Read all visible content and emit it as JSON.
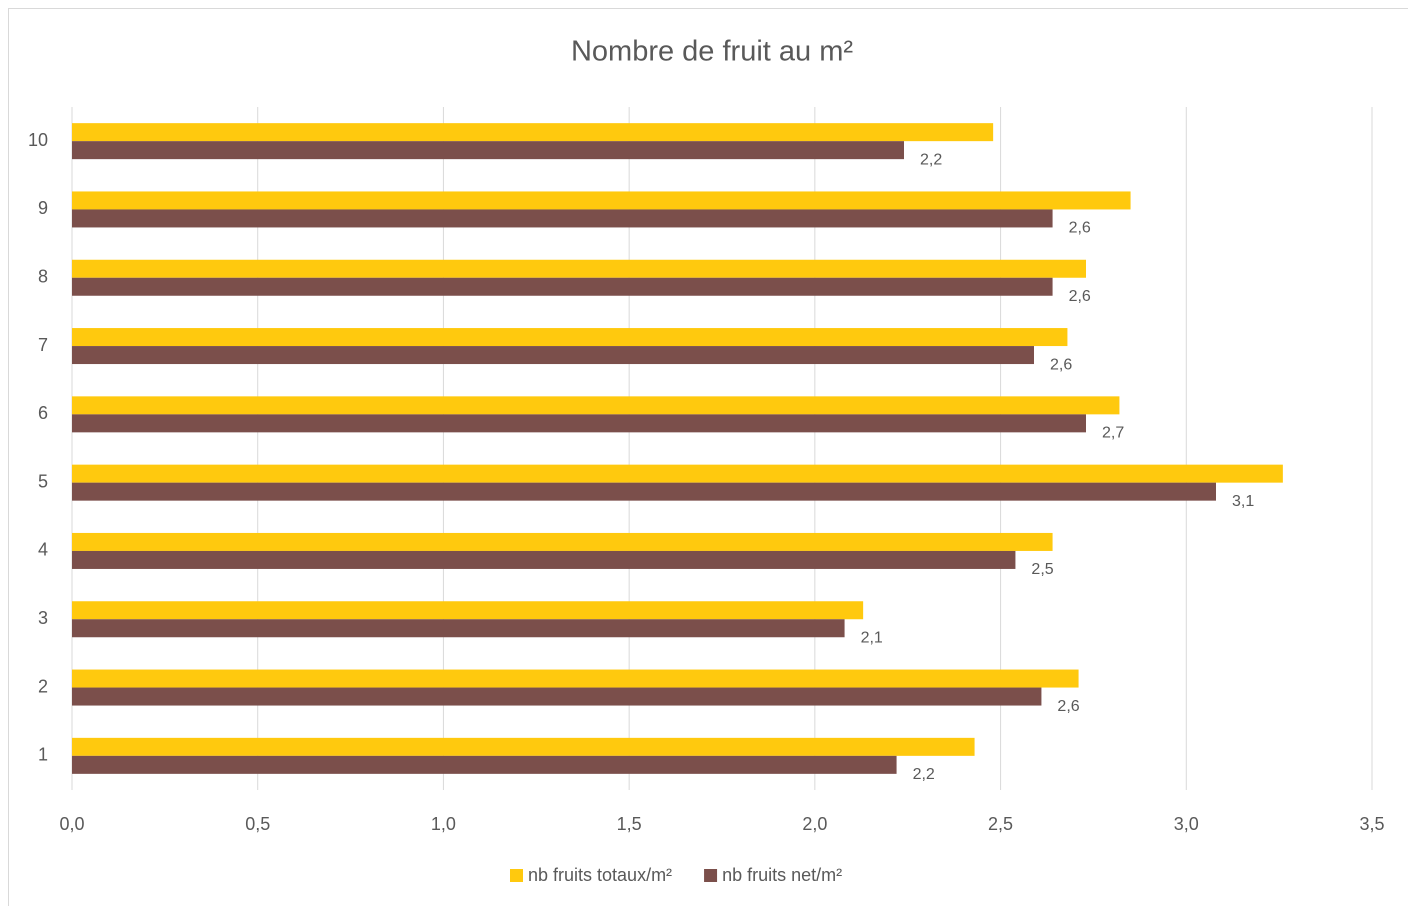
{
  "chart_data": {
    "type": "bar",
    "orientation": "horizontal",
    "title": "Nombre de fruit au m²",
    "categories": [
      "1",
      "2",
      "3",
      "4",
      "5",
      "6",
      "7",
      "8",
      "9",
      "10"
    ],
    "series": [
      {
        "name": "nb fruits totaux/m²",
        "color": "#ffc90e",
        "values": [
          2.43,
          2.71,
          2.13,
          2.64,
          3.26,
          2.82,
          2.68,
          2.73,
          2.85,
          2.48
        ]
      },
      {
        "name": "nb fruits net/m²",
        "color": "#7b4f4b",
        "values": [
          2.22,
          2.61,
          2.08,
          2.54,
          3.08,
          2.73,
          2.59,
          2.64,
          2.64,
          2.24
        ],
        "value_labels": [
          "2,2",
          "2,6",
          "2,1",
          "2,5",
          "3,1",
          "2,7",
          "2,6",
          "2,6",
          "2,6",
          "2,2"
        ]
      }
    ],
    "xlim": [
      0,
      3.5
    ],
    "xticks": [
      {
        "value": 0,
        "label": "0,0"
      },
      {
        "value": 0.5,
        "label": "0,5"
      },
      {
        "value": 1,
        "label": "1,0"
      },
      {
        "value": 1.5,
        "label": "1,5"
      },
      {
        "value": 2,
        "label": "2,0"
      },
      {
        "value": 2.5,
        "label": "2,5"
      },
      {
        "value": 3,
        "label": "3,0"
      },
      {
        "value": 3.5,
        "label": "3,5"
      }
    ],
    "grid": true,
    "legend": "bottom"
  }
}
